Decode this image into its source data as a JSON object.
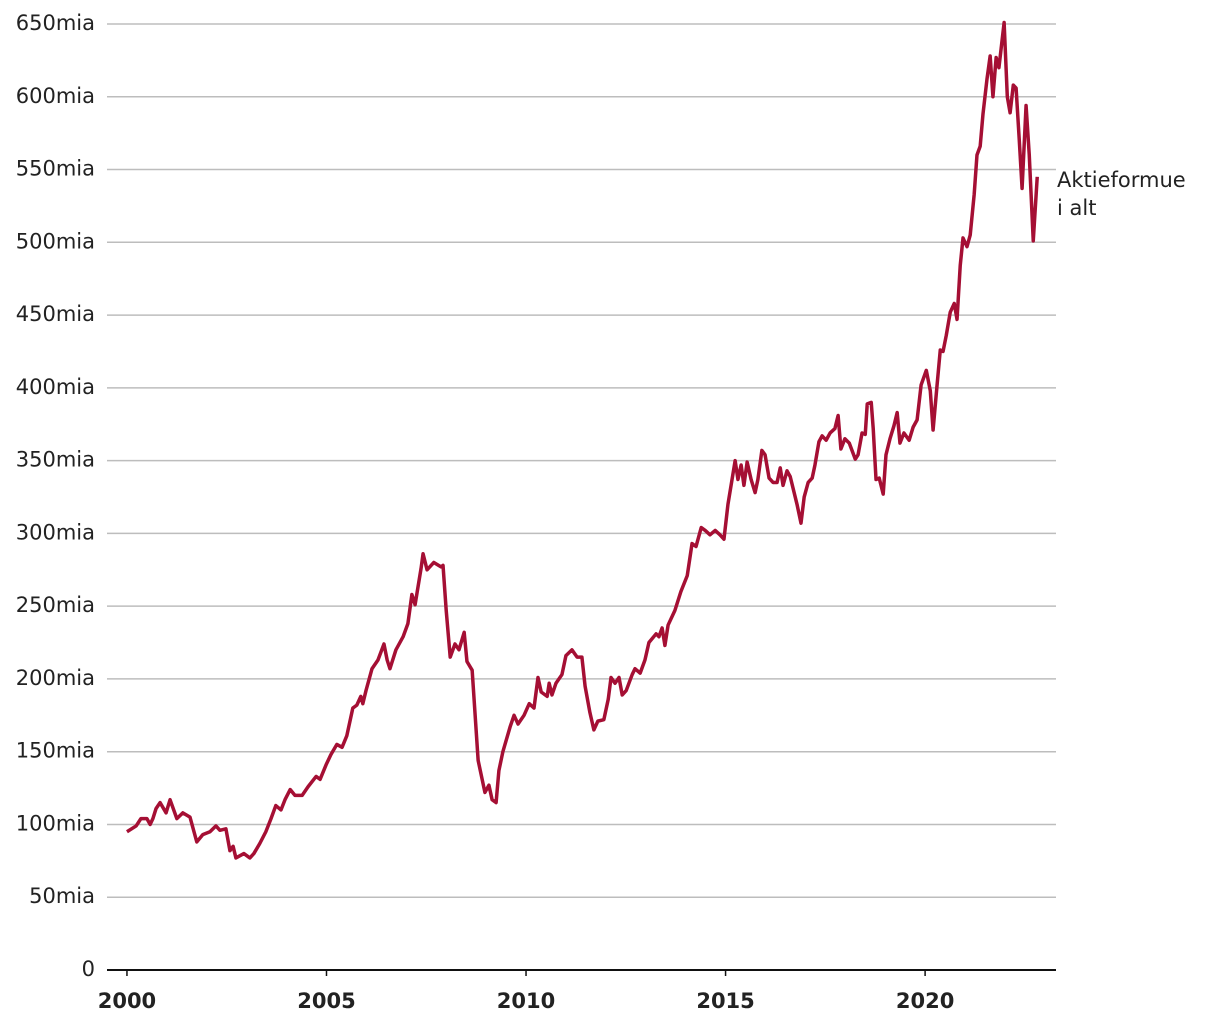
{
  "chart_data": {
    "type": "line",
    "x": [
      2000.0,
      2000.23,
      2000.35,
      2000.5,
      2000.58,
      2000.65,
      2000.73,
      2000.83,
      2000.98,
      2001.08,
      2001.25,
      2001.4,
      2001.58,
      2001.75,
      2001.9,
      2002.08,
      2002.23,
      2002.33,
      2002.48,
      2002.58,
      2002.66,
      2002.73,
      2002.93,
      2003.08,
      2003.18,
      2003.33,
      2003.48,
      2003.61,
      2003.73,
      2003.86,
      2003.96,
      2004.09,
      2004.21,
      2004.39,
      2004.54,
      2004.74,
      2004.84,
      2004.99,
      2005.11,
      2005.26,
      2005.39,
      2005.51,
      2005.66,
      2005.76,
      2005.86,
      2005.91,
      2005.99,
      2006.14,
      2006.29,
      2006.44,
      2006.52,
      2006.59,
      2006.74,
      2006.92,
      2007.04,
      2007.14,
      2007.22,
      2007.37,
      2007.42,
      2007.52,
      2007.69,
      2007.87,
      2007.92,
      2008.0,
      2008.1,
      2008.22,
      2008.32,
      2008.45,
      2008.52,
      2008.65,
      2008.8,
      2008.97,
      2009.07,
      2009.15,
      2009.25,
      2009.32,
      2009.42,
      2009.6,
      2009.7,
      2009.8,
      2009.95,
      2010.08,
      2010.2,
      2010.3,
      2010.38,
      2010.53,
      2010.58,
      2010.65,
      2010.75,
      2010.9,
      2011.0,
      2011.15,
      2011.28,
      2011.4,
      2011.48,
      2011.6,
      2011.7,
      2011.8,
      2011.95,
      2012.06,
      2012.13,
      2012.23,
      2012.33,
      2012.41,
      2012.51,
      2012.66,
      2012.73,
      2012.86,
      2012.98,
      2013.08,
      2013.26,
      2013.33,
      2013.41,
      2013.48,
      2013.56,
      2013.73,
      2013.88,
      2014.04,
      2014.16,
      2014.26,
      2014.39,
      2014.49,
      2014.61,
      2014.74,
      2014.86,
      2014.96,
      2015.06,
      2015.24,
      2015.31,
      2015.39,
      2015.46,
      2015.54,
      2015.64,
      2015.74,
      2015.81,
      2015.91,
      2015.99,
      2016.09,
      2016.19,
      2016.29,
      2016.37,
      2016.44,
      2016.54,
      2016.62,
      2016.79,
      2016.89,
      2016.97,
      2017.07,
      2017.17,
      2017.24,
      2017.34,
      2017.42,
      2017.52,
      2017.62,
      2017.74,
      2017.82,
      2017.89,
      2017.99,
      2018.1,
      2018.25,
      2018.32,
      2018.42,
      2018.5,
      2018.55,
      2018.65,
      2018.7,
      2018.77,
      2018.85,
      2018.95,
      2019.02,
      2019.12,
      2019.22,
      2019.3,
      2019.37,
      2019.47,
      2019.6,
      2019.7,
      2019.8,
      2019.9,
      2020.03,
      2020.13,
      2020.2,
      2020.3,
      2020.38,
      2020.45,
      2020.53,
      2020.63,
      2020.73,
      2020.8,
      2020.88,
      2020.95,
      2021.05,
      2021.13,
      2021.23,
      2021.3,
      2021.38,
      2021.45,
      2021.55,
      2021.63,
      2021.7,
      2021.78,
      2021.85,
      2021.98,
      2022.06,
      2022.13,
      2022.21,
      2022.28,
      2022.36,
      2022.43,
      2022.53,
      2022.61,
      2022.71,
      2022.81
    ],
    "series": [
      {
        "name": "Aktieformue i alt",
        "color": "#a50f34",
        "values": [
          95,
          99,
          104,
          104,
          100,
          104,
          111,
          115,
          108,
          117,
          104,
          108,
          105,
          88,
          93,
          95,
          99,
          96,
          97,
          82,
          85,
          77,
          80,
          77,
          80,
          87,
          95,
          104,
          113,
          110,
          117,
          124,
          120,
          120,
          126,
          133,
          131,
          141,
          148,
          155,
          153,
          161,
          180,
          182,
          188,
          183,
          192,
          207,
          213,
          224,
          213,
          207,
          220,
          229,
          238,
          258,
          251,
          276,
          286,
          275,
          280,
          277,
          278,
          247,
          215,
          224,
          220,
          232,
          212,
          206,
          144,
          122,
          127,
          117,
          115,
          137,
          150,
          167,
          175,
          169,
          175,
          183,
          180,
          201,
          191,
          188,
          197,
          189,
          197,
          203,
          216,
          220,
          215,
          215,
          195,
          177,
          165,
          171,
          172,
          186,
          201,
          197,
          201,
          189,
          192,
          203,
          207,
          204,
          213,
          225,
          231,
          229,
          235,
          223,
          237,
          247,
          260,
          271,
          293,
          291,
          304,
          302,
          299,
          302,
          299,
          296,
          320,
          350,
          337,
          347,
          333,
          349,
          337,
          328,
          337,
          357,
          354,
          338,
          335,
          335,
          345,
          333,
          343,
          339,
          320,
          307,
          325,
          335,
          338,
          347,
          363,
          367,
          364,
          369,
          372,
          381,
          358,
          365,
          362,
          351,
          354,
          369,
          368,
          389,
          390,
          372,
          337,
          338,
          327,
          354,
          365,
          374,
          383,
          362,
          369,
          364,
          373,
          378,
          402,
          412,
          398,
          371,
          402,
          426,
          425,
          436,
          452,
          458,
          447,
          484,
          503,
          497,
          505,
          533,
          560,
          566,
          588,
          612,
          628,
          600,
          627,
          620,
          651,
          600,
          589,
          608,
          606,
          570,
          537,
          594,
          560,
          501,
          545
        ]
      }
    ],
    "xlim": [
      1999.5,
      2023.28
    ],
    "xticks": [
      2000,
      2005,
      2010,
      2015,
      2020
    ],
    "ylim": [
      0,
      650
    ],
    "yticks": [
      0,
      {
        "value": 50,
        "label": "50mia"
      },
      {
        "value": 100,
        "label": "100mia"
      },
      {
        "value": 150,
        "label": "150mia"
      },
      {
        "value": 200,
        "label": "200mia"
      },
      {
        "value": 250,
        "label": "250mia"
      },
      {
        "value": 300,
        "label": "300mia"
      },
      {
        "value": 350,
        "label": "350mia"
      },
      {
        "value": 400,
        "label": "400mia"
      },
      {
        "value": 450,
        "label": "450mia"
      },
      {
        "value": 500,
        "label": "500mia"
      },
      {
        "value": 550,
        "label": "550mia"
      },
      {
        "value": 600,
        "label": "600mia"
      },
      {
        "value": 650,
        "label": "650mia"
      }
    ],
    "grid": true
  }
}
